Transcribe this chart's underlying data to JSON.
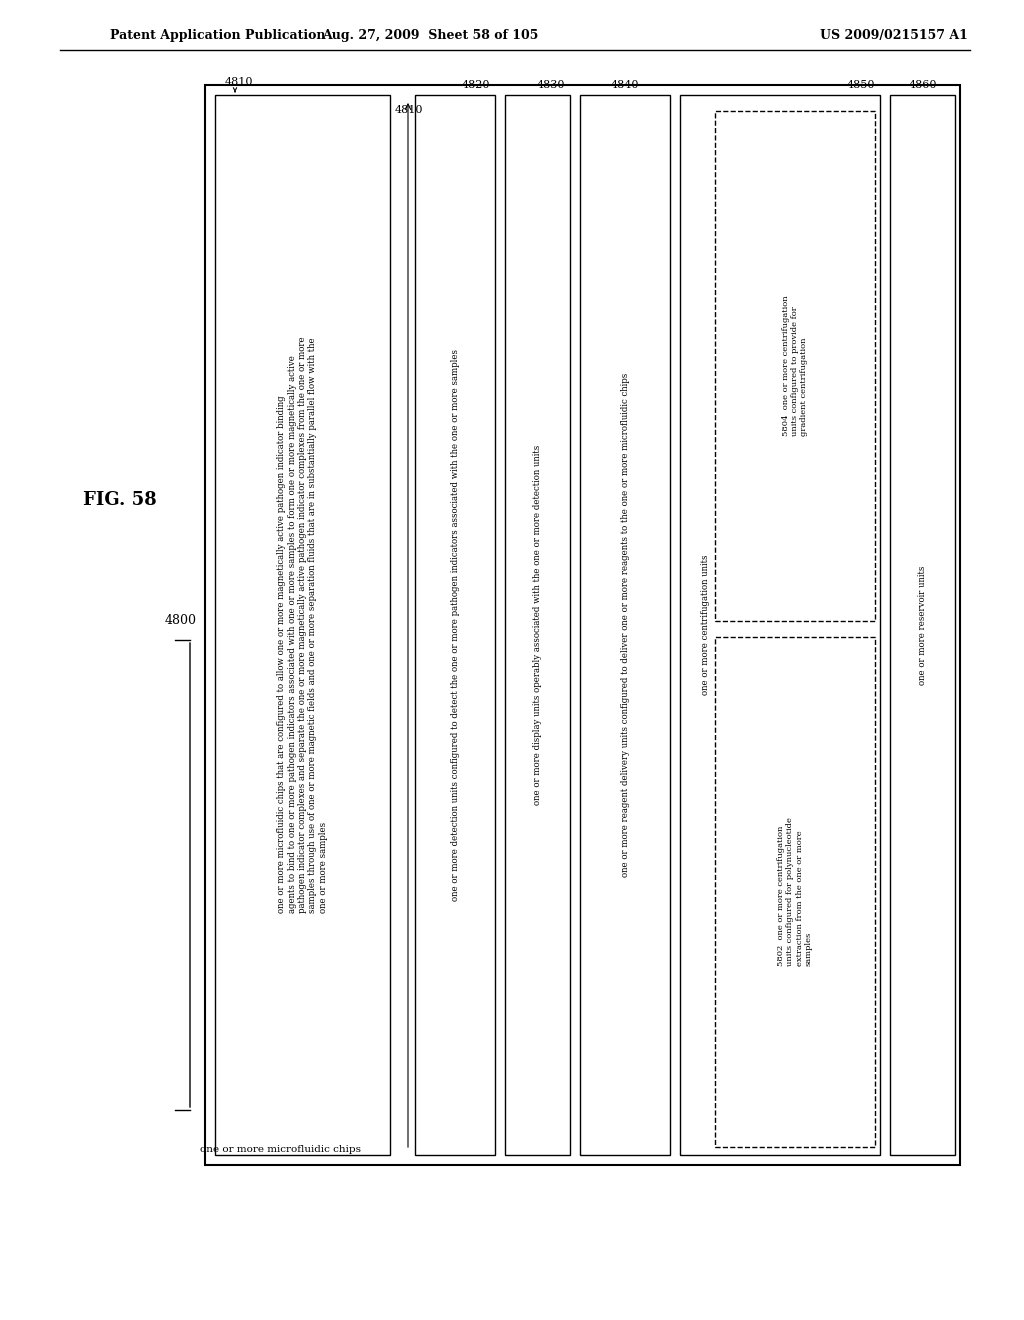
{
  "header_left": "Patent Application Publication",
  "header_mid": "Aug. 27, 2009  Sheet 58 of 105",
  "header_right": "US 2009/0215157 A1",
  "fig_label": "FIG. 58",
  "main_label": "4800",
  "boxes": [
    {
      "id": "4810",
      "label": "4810",
      "text": "one or more microfluidic chips that are configured to allow one or more magnetically active pathogen indicator binding\nagents to bind to one or more pathogen indicators associated with one or more samples to form one or more magnetically active\npathogen indicator complexes and separate the one or more magnetically active pathogen indicator complexes from the one or more\nsamples through use of one or more magnetic fields and one or more separation fluids that are in substantially parallel flow with the\none or more samples",
      "rotated": true,
      "dashed": false,
      "sub_boxes": []
    },
    {
      "id": "4820",
      "label": "4820",
      "text": "one or more detection units configured to detect the one or more pathogen indicators associated with the one or more samples",
      "rotated": true,
      "dashed": false,
      "sub_boxes": []
    },
    {
      "id": "4830",
      "label": "4830",
      "text": "one or more display units operably associated with the one or more detection units",
      "rotated": false,
      "dashed": false,
      "sub_boxes": []
    },
    {
      "id": "4840",
      "label": "4840",
      "text": "one or more reagent delivery units configured to deliver one or more reagents to the one or more microfluidic chips",
      "rotated": false,
      "dashed": false,
      "sub_boxes": []
    },
    {
      "id": "4850",
      "label": "4850",
      "text": "one or more centrifugation units",
      "rotated": false,
      "dashed": false,
      "sub_boxes": [
        {
          "id": "5802",
          "text": "5802  one or more centrifugation\nunits configured for polynucleotide\nextraction from the one or more\nsamples"
        },
        {
          "id": "5804",
          "text": "5804  one or more centrifugation\nunits configured to provide for\ngradient centrifugation"
        }
      ]
    },
    {
      "id": "4860",
      "label": "4860",
      "text": "one or more reservoir units",
      "rotated": false,
      "dashed": false,
      "sub_boxes": []
    }
  ]
}
